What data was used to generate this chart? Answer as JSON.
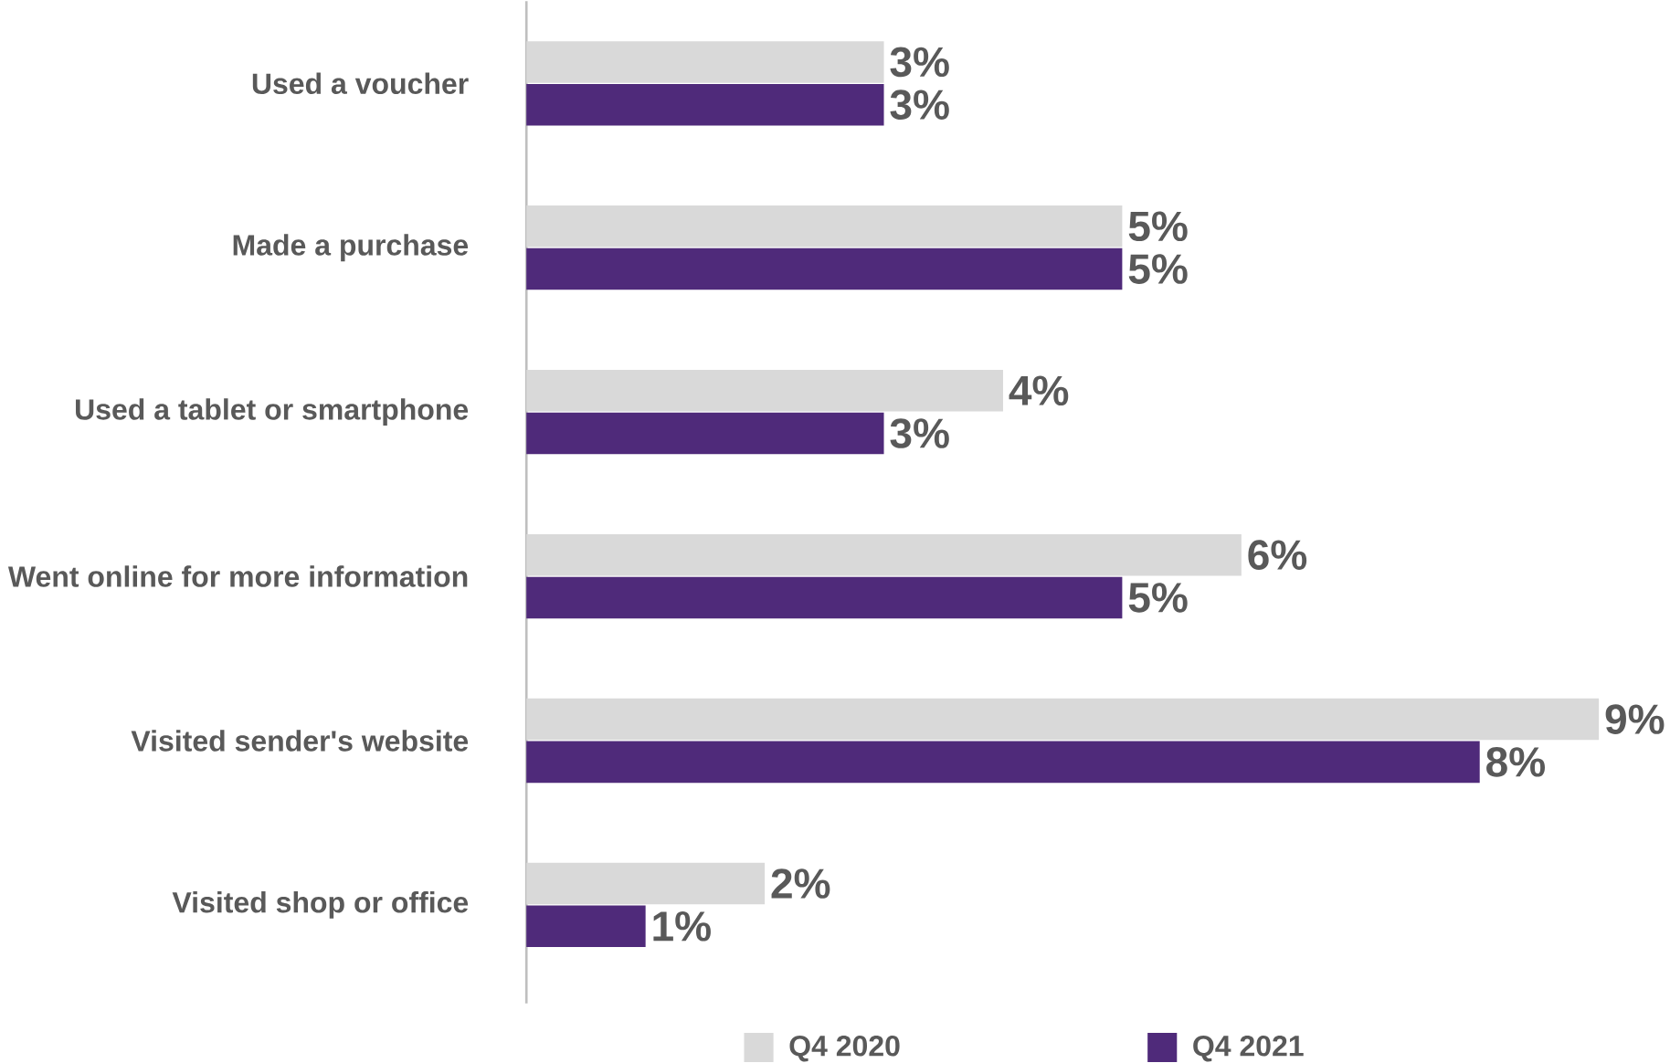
{
  "chart_data": {
    "type": "bar",
    "orientation": "horizontal",
    "legend": "bottom",
    "categories": [
      "Used a voucher",
      "Made a purchase",
      "Used a tablet or smartphone",
      "Went online for more information",
      "Visited sender's website",
      "Visited shop or office"
    ],
    "series": [
      {
        "name": "Q4 2020",
        "color": "#d9d9d9",
        "values": [
          3,
          5,
          4,
          6,
          9,
          2
        ],
        "value_labels": [
          "3%",
          "5%",
          "4%",
          "6%",
          "9%",
          "2%"
        ]
      },
      {
        "name": "Q4 2021",
        "color": "#4f2a7a",
        "values": [
          3,
          5,
          3,
          5,
          8,
          1
        ],
        "value_labels": [
          "3%",
          "5%",
          "3%",
          "5%",
          "8%",
          "1%"
        ]
      }
    ]
  }
}
